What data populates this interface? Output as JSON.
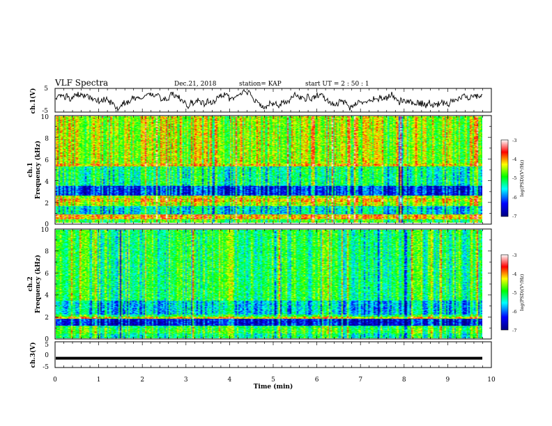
{
  "header": {
    "title": "VLF Spectra",
    "date": "Dec.21, 2018",
    "station": "station= KAP",
    "start_ut": "start  UT =  2 : 50 : 1"
  },
  "chart_data": [
    {
      "type": "line",
      "id": "ch1-waveform",
      "ylabel": "ch.1(V)",
      "ylim": [
        -5,
        5
      ],
      "y_ticks": [
        "5",
        "-5"
      ],
      "xlim": [
        0,
        10
      ],
      "description_of_series": "noisy waveform oscillating roughly between -3 V and +4 V",
      "series_color": "#000000"
    },
    {
      "type": "heatmap",
      "id": "ch1-spectrogram",
      "ylabel_line1": "ch.1",
      "ylabel_line2": "Frequency (kHz)",
      "ylim": [
        0,
        10
      ],
      "y_ticks": [
        "0",
        "2",
        "4",
        "6",
        "8",
        "10"
      ],
      "xlim": [
        0,
        10
      ],
      "data_end_min": 9.8,
      "colorbar": {
        "label": "log(PSD)(V²/Hz)",
        "range": [
          -7,
          -3
        ],
        "ticks": [
          "-3",
          "-4",
          "-5",
          "-6",
          "-7"
        ],
        "colors": [
          "#00007f",
          "#0000ff",
          "#00ffff",
          "#00ff00",
          "#ffff00",
          "#ff0000",
          "#ffffff"
        ]
      }
    },
    {
      "type": "heatmap",
      "id": "ch2-spectrogram",
      "ylabel_line1": "ch.2",
      "ylabel_line2": "Frequency (kHz)",
      "ylim": [
        0,
        10
      ],
      "y_ticks": [
        "0",
        "2",
        "4",
        "6",
        "8",
        "10"
      ],
      "xlim": [
        0,
        10
      ],
      "data_end_min": 9.8,
      "colorbar": {
        "label": "log(PSD)(V²/Hz)",
        "range": [
          -7,
          -3
        ],
        "ticks": [
          "-3",
          "-4",
          "-5",
          "-6",
          "-7"
        ],
        "colors": [
          "#00007f",
          "#0000ff",
          "#00ffff",
          "#00ff00",
          "#ffff00",
          "#ff0000",
          "#ffffff"
        ]
      }
    },
    {
      "type": "line",
      "id": "ch3-waveform",
      "ylabel": "ch.3(V)",
      "ylim": [
        -5,
        5
      ],
      "y_ticks": [
        "5",
        "0",
        "-5"
      ],
      "xlim": [
        0,
        10
      ],
      "series": [
        {
          "values_constant_V": -1.4
        }
      ],
      "series_color": "#000000"
    }
  ],
  "x_axis": {
    "label": "Time  (min)",
    "ticks": [
      "0",
      "1",
      "2",
      "3",
      "4",
      "5",
      "6",
      "7",
      "8",
      "9",
      "10"
    ]
  }
}
